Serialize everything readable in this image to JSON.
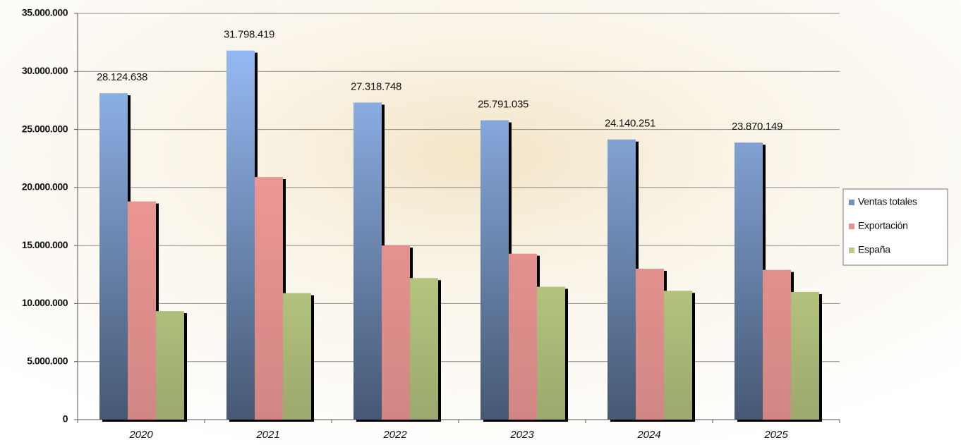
{
  "chart_data": {
    "type": "bar",
    "categories": [
      "2020",
      "2021",
      "2022",
      "2023",
      "2024",
      "2025"
    ],
    "series": [
      {
        "name": "Ventas totales",
        "color": "#9cc3ff",
        "values": [
          28124638,
          31798419,
          27318748,
          25791035,
          24140251,
          23870149
        ],
        "value_labels": [
          "28.124.638",
          "31.798.419",
          "27.318.748",
          "25.791.035",
          "24.140.251",
          "23.870.149"
        ]
      },
      {
        "name": "Exportación",
        "color": "#ffa3a0",
        "values": [
          18800000,
          20900000,
          15000000,
          14300000,
          13000000,
          12900000
        ]
      },
      {
        "name": "España",
        "color": "#e4f9a0",
        "values": [
          9350000,
          10900000,
          12200000,
          11450000,
          11100000,
          11000000
        ]
      }
    ],
    "ylim": [
      0,
      35000000
    ],
    "yticks": [
      0,
      {
        "value": 5000000,
        "label": "5.000.000"
      },
      {
        "value": 10000000,
        "label": "10.000.000"
      },
      {
        "value": 15000000,
        "label": "15.000.000"
      },
      {
        "value": 20000000,
        "label": "20.000.000"
      },
      {
        "value": 25000000,
        "label": "25.000.000"
      },
      {
        "value": 30000000,
        "label": "30.000.000"
      },
      {
        "value": 35000000,
        "label": "35.000.000"
      }
    ],
    "grid": true,
    "legend": "right"
  }
}
